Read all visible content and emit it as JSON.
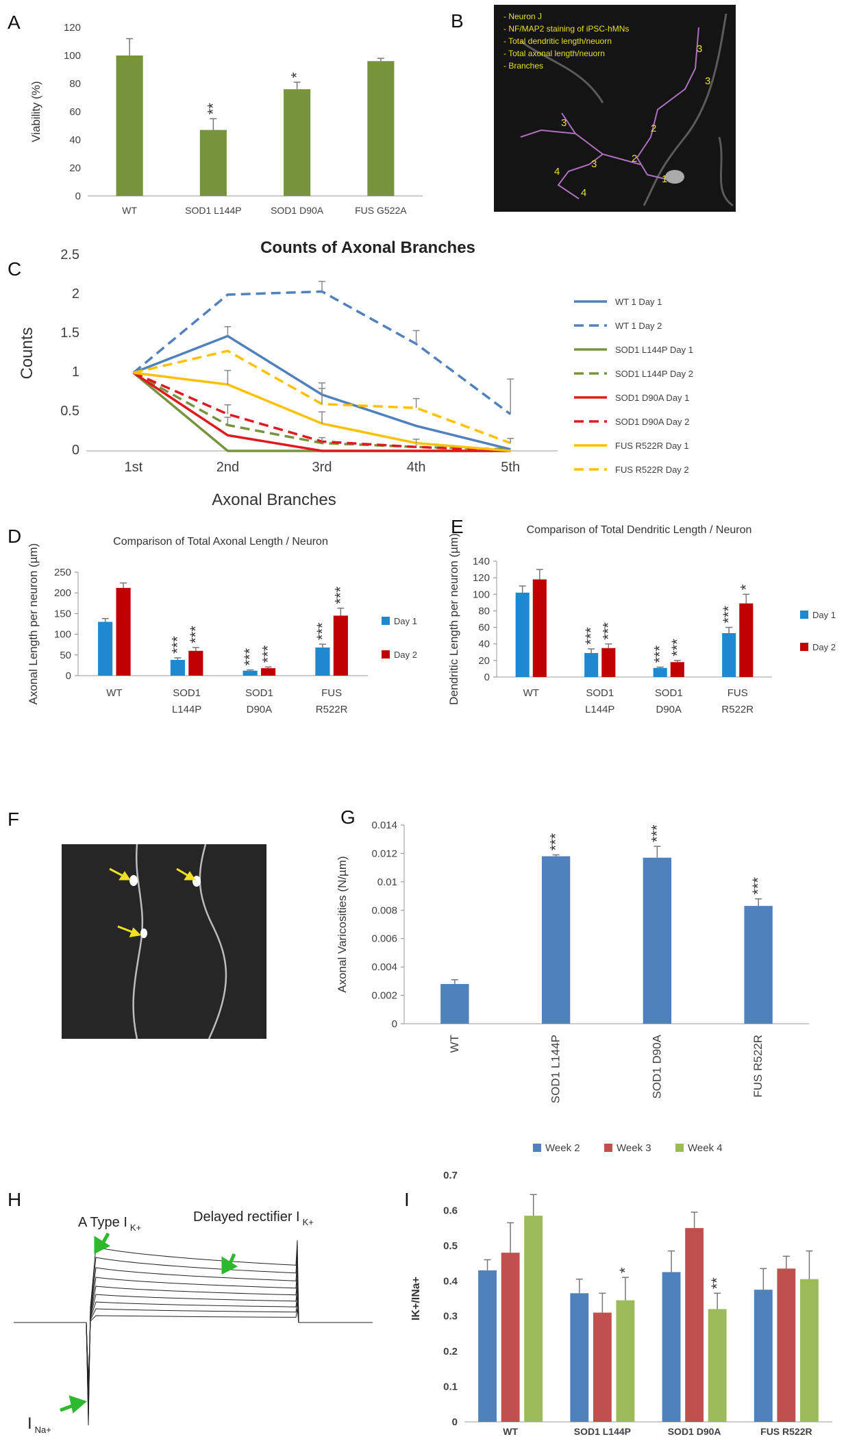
{
  "chart_data": [
    {
      "type": "bar",
      "panel": "A",
      "y_label": "Viability (%)",
      "categories": [
        "WT",
        "SOD1 L144P",
        "SOD1 D90A",
        "FUS G522A"
      ],
      "values": [
        100,
        47,
        76,
        96
      ],
      "errors": [
        12,
        8,
        5,
        2
      ],
      "significance": [
        null,
        "**",
        "*",
        null
      ],
      "color": "#77933c",
      "ylim": [
        0,
        120
      ],
      "yticks": [
        0,
        20,
        40,
        60,
        80,
        100,
        120
      ]
    },
    {
      "type": "line",
      "panel": "C",
      "title": "Counts of Axonal Branches",
      "y_label": "Counts",
      "x_label": "Axonal Branches",
      "categories": [
        "1st",
        "2nd",
        "3rd",
        "4th",
        "5th"
      ],
      "ylim": [
        0,
        2.5
      ],
      "yticks": [
        0,
        0.5,
        1,
        1.5,
        2,
        2.5
      ],
      "series": [
        {
          "name": "WT 1 Day 1",
          "color": "#4f81bd",
          "line_style": "solid",
          "values": [
            1,
            1.47,
            0.72,
            0.32,
            0.02
          ],
          "errors": [
            null,
            0.12,
            0.15,
            null,
            null
          ]
        },
        {
          "name": "WT 1 Day 2",
          "color": "#4f81bd",
          "line_style": "dashed",
          "values": [
            1,
            2.0,
            2.04,
            1.37,
            0.47
          ],
          "errors": [
            null,
            null,
            0.13,
            0.17,
            0.45
          ]
        },
        {
          "name": "SOD1 L144P Day 1",
          "color": "#77933c",
          "line_style": "solid",
          "values": [
            1,
            0,
            0,
            0,
            0
          ]
        },
        {
          "name": "SOD1 L144P Day 2",
          "color": "#77933c",
          "line_style": "dashed",
          "values": [
            1,
            0.33,
            0.1,
            0.05,
            0.02
          ],
          "errors": [
            null,
            0.1,
            null,
            null,
            null
          ]
        },
        {
          "name": "SOD1 D90A Day 1",
          "color": "#e0191f",
          "line_style": "solid",
          "values": [
            1,
            0.2,
            0,
            0,
            0
          ]
        },
        {
          "name": "SOD1 D90A Day 2",
          "color": "#e0191f",
          "line_style": "dashed",
          "values": [
            1,
            0.47,
            0.12,
            0.05,
            0
          ],
          "errors": [
            null,
            0.12,
            0.05,
            0.05,
            null
          ]
        },
        {
          "name": "FUS R522R Day 1",
          "color": "#ffc000",
          "line_style": "solid",
          "values": [
            1,
            0.85,
            0.35,
            0.1,
            0
          ],
          "errors": [
            null,
            0.18,
            0.15,
            0.05,
            null
          ]
        },
        {
          "name": "FUS R522R Day 2",
          "color": "#ffc000",
          "line_style": "dashed",
          "values": [
            1,
            1.28,
            0.6,
            0.55,
            0.1
          ],
          "errors": [
            null,
            null,
            0.2,
            0.12,
            0.06
          ]
        }
      ]
    },
    {
      "type": "bar",
      "panel": "D",
      "title": "Comparison of Total Axonal Length / Neuron",
      "y_label": "Axonal Length per neuron (µm)",
      "categories": [
        [
          "WT"
        ],
        [
          "SOD1",
          "L144P"
        ],
        [
          "SOD1",
          "D90A"
        ],
        [
          "FUS",
          "R522R"
        ]
      ],
      "ylim": [
        0,
        250
      ],
      "yticks": [
        0,
        50,
        100,
        150,
        200,
        250
      ],
      "series": [
        {
          "name": "Day 1",
          "color": "#1e88d0",
          "values": [
            130,
            38,
            12,
            68
          ],
          "errors": [
            8,
            5,
            2,
            8
          ],
          "significance": [
            null,
            "***",
            "***",
            "***"
          ]
        },
        {
          "name": "Day 2",
          "color": "#c00000",
          "values": [
            212,
            60,
            18,
            145
          ],
          "errors": [
            12,
            8,
            3,
            18
          ],
          "significance": [
            null,
            "***",
            "***",
            "***"
          ]
        }
      ]
    },
    {
      "type": "bar",
      "panel": "E",
      "title": "Comparison of Total Dendritic Length / Neuron",
      "y_label": "Dendritic  Length per neuron (µm)",
      "categories": [
        [
          "WT"
        ],
        [
          "SOD1",
          "L144P"
        ],
        [
          "SOD1",
          "D90A"
        ],
        [
          "FUS",
          "R522R"
        ]
      ],
      "ylim": [
        0,
        140
      ],
      "yticks": [
        0,
        20,
        40,
        60,
        80,
        100,
        120,
        140
      ],
      "series": [
        {
          "name": "Day 1",
          "color": "#1e88d0",
          "values": [
            102,
            29,
            11,
            53
          ],
          "errors": [
            8,
            5,
            1,
            7
          ],
          "significance": [
            null,
            "***",
            "***",
            "***"
          ]
        },
        {
          "name": "Day 2",
          "color": "#c00000",
          "values": [
            118,
            35,
            18,
            89
          ],
          "errors": [
            12,
            5,
            2,
            11
          ],
          "significance": [
            null,
            "***",
            "***",
            "*"
          ]
        }
      ]
    },
    {
      "type": "bar",
      "panel": "G",
      "y_label": "Axonal Varicosities (N/µm)",
      "categories": [
        "WT",
        "SOD1 L144P",
        "SOD1 D90A",
        "FUS R522R"
      ],
      "values": [
        0.0028,
        0.0118,
        0.0117,
        0.0083
      ],
      "errors": [
        0.0003,
        0.0001,
        0.0008,
        0.0005
      ],
      "significance": [
        null,
        "***",
        "***",
        "***"
      ],
      "color": "#4f81bd",
      "ylim": [
        0,
        0.014
      ],
      "yticks": [
        0,
        0.002,
        0.004,
        0.006,
        0.008,
        0.01,
        0.012,
        0.014
      ]
    },
    {
      "type": "bar",
      "panel": "I",
      "y_label": "IK+/INa+",
      "categories": [
        "WT",
        "SOD1 L144P",
        "SOD1 D90A",
        "FUS R522R"
      ],
      "ylim": [
        0,
        0.7
      ],
      "yticks": [
        0,
        0.1,
        0.2,
        0.3,
        0.4,
        0.5,
        0.6,
        0.7
      ],
      "series": [
        {
          "name": "Week 2",
          "color": "#4f81bd",
          "values": [
            0.43,
            0.365,
            0.425,
            0.375
          ],
          "errors": [
            0.03,
            0.04,
            0.06,
            0.06
          ]
        },
        {
          "name": "Week 3",
          "color": "#c0504d",
          "values": [
            0.48,
            0.31,
            0.55,
            0.435
          ],
          "errors": [
            0.085,
            0.055,
            0.045,
            0.035
          ]
        },
        {
          "name": "Week 4",
          "color": "#9bbb59",
          "values": [
            0.585,
            0.345,
            0.32,
            0.405
          ],
          "errors": [
            0.06,
            0.065,
            0.045,
            0.08
          ],
          "significance": [
            null,
            "*",
            "**",
            null
          ]
        }
      ]
    }
  ],
  "images": {
    "B": {
      "panel": "B",
      "notes": [
        "- Neuron J",
        "- NF/MAP2 staining of iPSC-hMNs",
        "- Total dendritic length/neuorn",
        "- Total axonal length/neuorn",
        "- Branches"
      ],
      "numbers": [
        "3",
        "3",
        "3",
        "2",
        "2",
        "3",
        "4",
        "4",
        "1"
      ]
    },
    "F": {
      "panel": "F"
    },
    "H": {
      "panel": "H",
      "labels": [
        {
          "text": "A Type  I",
          "sub": "K+"
        },
        {
          "text": "Delayed rectifier I",
          "sub": "K+"
        },
        {
          "text": "I",
          "sub": "Na+"
        }
      ]
    }
  }
}
